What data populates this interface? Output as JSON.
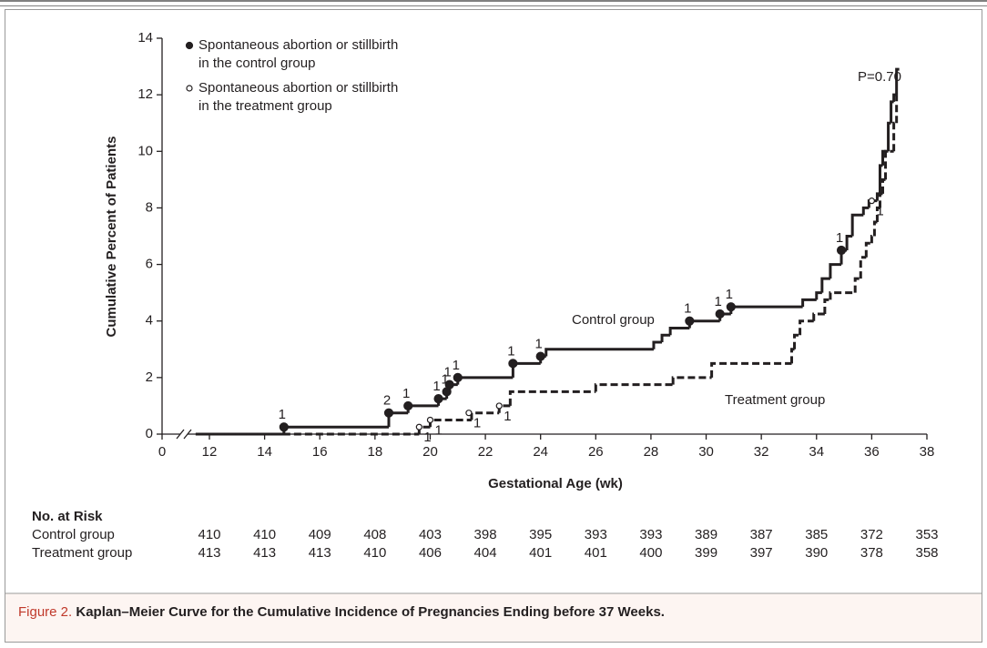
{
  "chart_data": {
    "type": "step",
    "ylabel": "Cumulative Percent of Patients",
    "xlabel": "Gestational Age (wk)",
    "xlim": [
      12,
      38
    ],
    "axis_break": true,
    "xticks": [
      0,
      12,
      14,
      16,
      18,
      20,
      22,
      24,
      26,
      28,
      30,
      32,
      34,
      36,
      38
    ],
    "ylim": [
      0,
      14
    ],
    "yticks": [
      0,
      2,
      4,
      6,
      8,
      10,
      12,
      14
    ],
    "annotation": "P=0.70",
    "series": [
      {
        "name": "Control group",
        "color": "#231f20",
        "dashed": false,
        "x": [
          11.6,
          14.7,
          18.5,
          19.2,
          20.3,
          20.6,
          20.7,
          21.0,
          23.0,
          24.0,
          24.2,
          28.1,
          28.4,
          28.7,
          29.4,
          30.5,
          30.9,
          33.5,
          34.0,
          34.2,
          34.5,
          34.9,
          35.1,
          35.3,
          35.7,
          35.9,
          36.2,
          36.3,
          36.4,
          36.6,
          36.7,
          36.8,
          36.9
        ],
        "values": [
          0,
          0.25,
          0.75,
          1.0,
          1.25,
          1.5,
          1.75,
          2.0,
          2.5,
          2.75,
          3.0,
          3.25,
          3.5,
          3.75,
          4.0,
          4.25,
          4.5,
          4.75,
          5.0,
          5.5,
          6.0,
          6.5,
          7.0,
          7.75,
          8.0,
          8.25,
          8.5,
          9.5,
          10.0,
          11.0,
          11.75,
          12.0,
          12.9
        ],
        "event_x": [
          14.7,
          18.5,
          19.2,
          20.3,
          20.6,
          20.7,
          21.0,
          23.0,
          24.0,
          29.4,
          30.5,
          30.9,
          34.9
        ],
        "event_y": [
          0.25,
          0.75,
          1.0,
          1.25,
          1.5,
          1.75,
          2.0,
          2.5,
          2.75,
          4.0,
          4.25,
          4.5,
          6.5
        ],
        "event_counts": [
          1,
          2,
          1,
          1,
          1,
          1,
          1,
          1,
          1,
          1,
          1,
          1,
          1
        ],
        "at_risk": [
          410,
          410,
          409,
          408,
          403,
          398,
          395,
          393,
          393,
          389,
          387,
          385,
          372,
          353
        ]
      },
      {
        "name": "Treatment group",
        "color": "#231f20",
        "dashed": true,
        "x": [
          11.5,
          19.6,
          20.0,
          21.5,
          22.5,
          22.9,
          26.0,
          28.8,
          30.2,
          33.1,
          33.2,
          33.4,
          33.9,
          34.3,
          34.5,
          35.4,
          35.6,
          35.8,
          36.0,
          36.1,
          36.2,
          36.3,
          36.4,
          36.5,
          36.8,
          36.9
        ],
        "values": [
          0,
          0.25,
          0.5,
          0.75,
          1.0,
          1.5,
          1.75,
          2.0,
          2.5,
          3.0,
          3.5,
          4.0,
          4.25,
          4.75,
          5.0,
          5.5,
          6.25,
          6.75,
          7.0,
          7.5,
          8.0,
          8.5,
          9.0,
          10.0,
          11.0,
          12.0
        ],
        "event_x": [
          19.6,
          20.0,
          21.4,
          22.5,
          36.0
        ],
        "event_y": [
          0.25,
          0.5,
          0.75,
          1.0,
          8.25
        ],
        "event_counts": [
          1,
          1,
          1,
          1,
          1
        ],
        "at_risk": [
          413,
          413,
          413,
          410,
          406,
          404,
          401,
          401,
          400,
          399,
          397,
          390,
          378,
          358
        ]
      }
    ],
    "marker_legend": [
      {
        "filled": true,
        "lines": [
          "Spontaneous abortion or stillbirth",
          "in the control group"
        ]
      },
      {
        "filled": false,
        "lines": [
          "Spontaneous abortion or stillbirth",
          "in the treatment group"
        ]
      }
    ],
    "risk_table_title": "No. at Risk"
  },
  "caption": {
    "label": "Figure 2.",
    "text": "Kaplan–Meier Curve for the Cumulative Incidence of Pregnancies Ending before 37 Weeks."
  }
}
